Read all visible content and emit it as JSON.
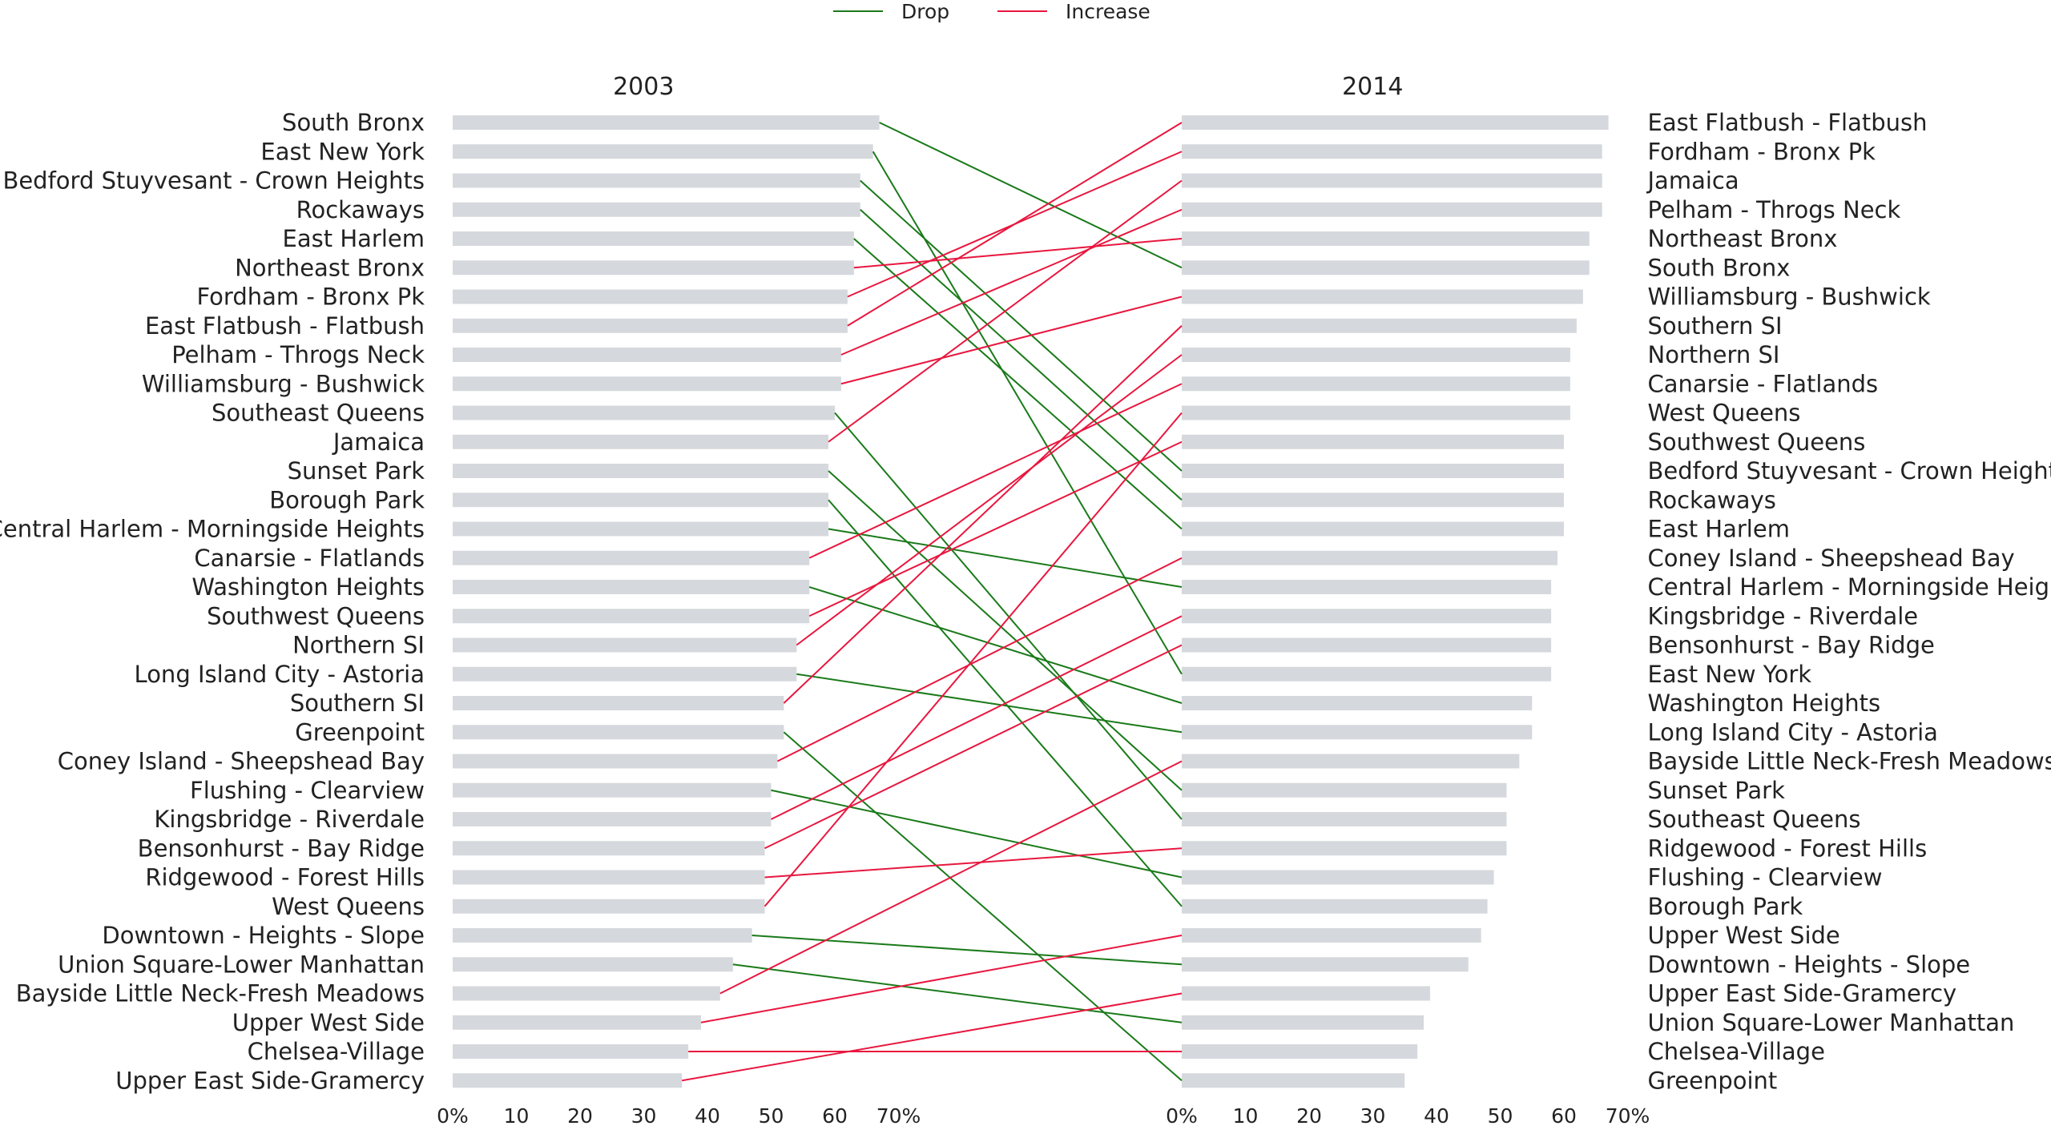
{
  "chart_data": {
    "type": "bar",
    "legend": {
      "position": "top-center",
      "entries": [
        {
          "label": "Drop",
          "color": "#1a7a1a"
        },
        {
          "label": "Increase",
          "color": "#e8173f"
        }
      ]
    },
    "bar_color": "#d5d8dc",
    "xlim": [
      0,
      70
    ],
    "x_ticks": [
      "0%",
      "10",
      "20",
      "30",
      "40",
      "50",
      "60",
      "70%"
    ],
    "x_tick_values": [
      0,
      10,
      20,
      30,
      40,
      50,
      60,
      70
    ],
    "grid": false,
    "panels": [
      {
        "title": "2003",
        "categories": [
          "South Bronx",
          "East New York",
          "Bedford Stuyvesant - Crown Heights",
          "Rockaways",
          "East Harlem",
          "Northeast Bronx",
          "Fordham - Bronx Pk",
          "East Flatbush - Flatbush",
          "Pelham - Throgs Neck",
          "Williamsburg - Bushwick",
          "Southeast Queens",
          "Jamaica",
          "Sunset Park",
          "Borough Park",
          "Central Harlem - Morningside Heights",
          "Canarsie - Flatlands",
          "Washington Heights",
          "Southwest Queens",
          "Northern SI",
          "Long Island City - Astoria",
          "Southern SI",
          "Greenpoint",
          "Coney Island - Sheepshead Bay",
          "Flushing - Clearview",
          "Kingsbridge - Riverdale",
          "Bensonhurst - Bay Ridge",
          "Ridgewood - Forest Hills",
          "West Queens",
          "Downtown - Heights - Slope",
          "Union Square-Lower Manhattan",
          "Bayside Little Neck-Fresh Meadows",
          "Upper West Side",
          "Chelsea-Village",
          "Upper East Side-Gramercy"
        ],
        "values": [
          67,
          66,
          64,
          64,
          63,
          63,
          62,
          62,
          61,
          61,
          60,
          59,
          59,
          59,
          59,
          56,
          56,
          56,
          54,
          54,
          52,
          52,
          51,
          50,
          50,
          49,
          49,
          49,
          47,
          44,
          42,
          39,
          37,
          36
        ]
      },
      {
        "title": "2014",
        "categories": [
          "East Flatbush - Flatbush",
          "Fordham - Bronx Pk",
          "Jamaica",
          "Pelham - Throgs Neck",
          "Northeast Bronx",
          "South Bronx",
          "Williamsburg - Bushwick",
          "Southern SI",
          "Northern SI",
          "Canarsie - Flatlands",
          "West Queens",
          "Southwest Queens",
          "Bedford Stuyvesant - Crown Heights",
          "Rockaways",
          "East Harlem",
          "Coney Island - Sheepshead Bay",
          "Central Harlem - Morningside Heights",
          "Kingsbridge - Riverdale",
          "Bensonhurst - Bay Ridge",
          "East New York",
          "Washington Heights",
          "Long Island City - Astoria",
          "Bayside Little Neck-Fresh Meadows",
          "Sunset Park",
          "Southeast Queens",
          "Ridgewood - Forest Hills",
          "Flushing - Clearview",
          "Borough Park",
          "Upper West Side",
          "Downtown - Heights - Slope",
          "Upper East Side-Gramercy",
          "Union Square-Lower Manhattan",
          "Chelsea-Village",
          "Greenpoint"
        ],
        "values": [
          67,
          66,
          66,
          66,
          64,
          64,
          63,
          62,
          61,
          61,
          61,
          60,
          60,
          60,
          60,
          59,
          58,
          58,
          58,
          58,
          55,
          55,
          53,
          51,
          51,
          51,
          49,
          48,
          47,
          45,
          39,
          38,
          37,
          35
        ]
      }
    ]
  }
}
